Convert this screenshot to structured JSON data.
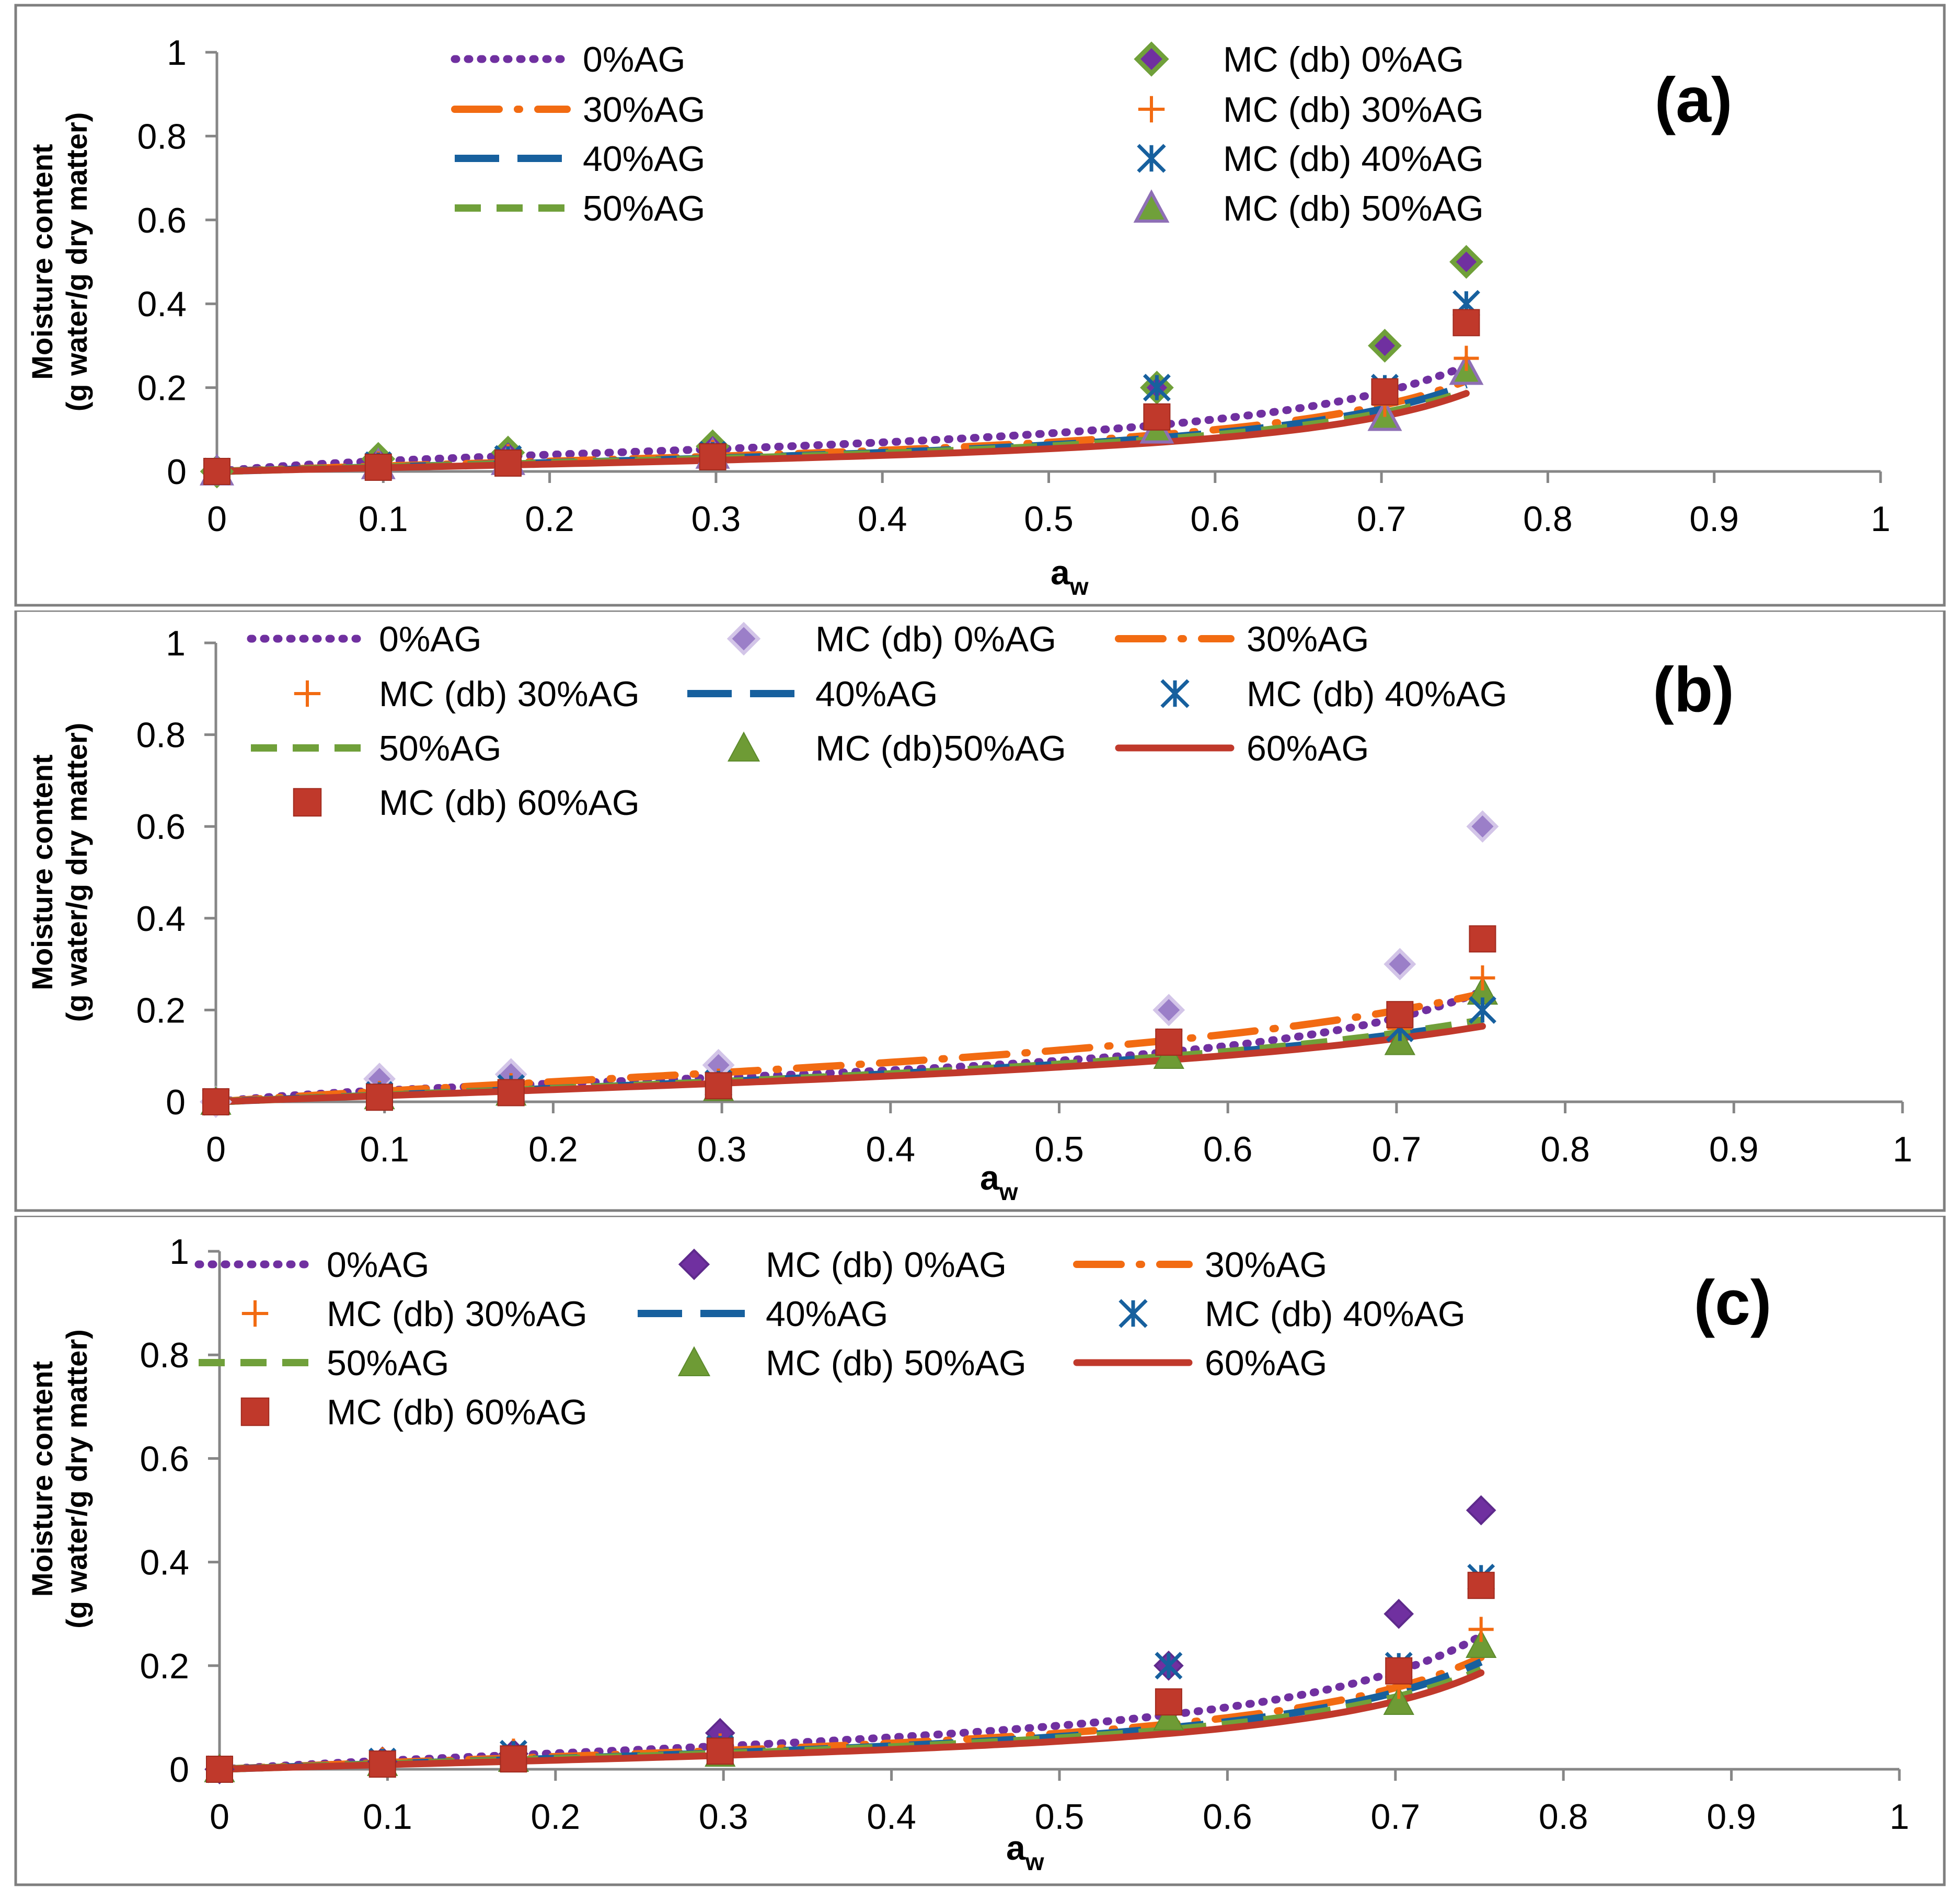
{
  "chart_data": [
    {
      "type": "scatter",
      "panel_label": "(a)",
      "title": "",
      "xlabel_main": "a",
      "xlabel_sub": "w",
      "ylabel_line1": "Moisture content",
      "ylabel_line2": "(g water/g dry matter)",
      "xlim": [
        0,
        1
      ],
      "ylim": [
        0,
        1
      ],
      "xticks": [
        "0",
        "0.1",
        "0.2",
        "0.3",
        "0.4",
        "0.5",
        "0.6",
        "0.7",
        "0.8",
        "0.9",
        "1"
      ],
      "yticks": [
        "0",
        "0.2",
        "0.4",
        "0.6",
        "0.8",
        "1"
      ],
      "grid": false,
      "legend_position": "top",
      "series": [
        {
          "name": "0%AG",
          "kind": "line",
          "style": "dotted",
          "color": "#7030A0",
          "model": {
            "W": 0.045,
            "C": 8,
            "K": 1.1
          }
        },
        {
          "name": "30%AG",
          "kind": "line",
          "style": "dashdot",
          "color": "#F26B12",
          "model": {
            "W": 0.038,
            "C": 3.5,
            "K": 1.11
          }
        },
        {
          "name": "40%AG",
          "kind": "line",
          "style": "dashed",
          "color": "#17609E",
          "model": {
            "W": 0.035,
            "C": 3.0,
            "K": 1.12
          }
        },
        {
          "name": "50%AG",
          "kind": "line",
          "style": "shortdash",
          "color": "#70A03A",
          "model": {
            "W": 0.034,
            "C": 3.0,
            "K": 1.11
          }
        },
        {
          "name": "",
          "kind": "line",
          "style": "solid",
          "color": "#C0392B",
          "model": {
            "W": 0.03,
            "C": 2.8,
            "K": 1.13
          }
        },
        {
          "name": "MC (db) 0%AG",
          "kind": "marker",
          "marker": "diamond-green",
          "color": "#70A03A",
          "x": [
            0,
            0.097,
            0.175,
            0.298,
            0.565,
            0.702,
            0.751
          ],
          "y": [
            0,
            0.03,
            0.045,
            0.06,
            0.2,
            0.3,
            0.5
          ]
        },
        {
          "name": "MC (db) 30%AG",
          "kind": "marker",
          "marker": "plus",
          "color": "#F26B12",
          "x": [
            0,
            0.097,
            0.175,
            0.298,
            0.565,
            0.702,
            0.751
          ],
          "y": [
            0,
            0.018,
            0.035,
            0.045,
            0.13,
            0.16,
            0.27
          ]
        },
        {
          "name": "MC (db) 40%AG",
          "kind": "marker",
          "marker": "asterisk",
          "color": "#17609E",
          "x": [
            0,
            0.097,
            0.175,
            0.298,
            0.565,
            0.702,
            0.751
          ],
          "y": [
            0,
            0.015,
            0.03,
            0.04,
            0.2,
            0.2,
            0.4
          ]
        },
        {
          "name": "MC (db) 50%AG",
          "kind": "marker",
          "marker": "triangle-purple",
          "color": "#8E6FB5",
          "x": [
            0,
            0.097,
            0.175,
            0.298,
            0.565,
            0.702,
            0.751
          ],
          "y": [
            0,
            0.015,
            0.025,
            0.04,
            0.1,
            0.13,
            0.24
          ]
        },
        {
          "name": "",
          "kind": "marker",
          "marker": "square",
          "color": "#C0392B",
          "x": [
            0,
            0.097,
            0.175,
            0.298,
            0.565,
            0.702,
            0.751
          ],
          "y": [
            0,
            0.01,
            0.02,
            0.035,
            0.13,
            0.19,
            0.355
          ]
        }
      ]
    },
    {
      "type": "scatter",
      "panel_label": "(b)",
      "title": "",
      "xlabel_main": "a",
      "xlabel_sub": "w",
      "ylabel_line1": "Moisture content",
      "ylabel_line2": "(g water/g dry matter)",
      "xlim": [
        0,
        1
      ],
      "ylim": [
        0,
        1
      ],
      "xticks": [
        "0",
        "0.1",
        "0.2",
        "0.3",
        "0.4",
        "0.5",
        "0.6",
        "0.7",
        "0.8",
        "0.9",
        "1"
      ],
      "yticks": [
        "0",
        "0.2",
        "0.4",
        "0.6",
        "0.8",
        "1"
      ],
      "grid": false,
      "legend_position": "top",
      "series": [
        {
          "name": "0%AG",
          "kind": "line",
          "style": "dotted",
          "color": "#7030A0",
          "model": {
            "W": 0.045,
            "C": 8,
            "K": 1.09
          }
        },
        {
          "name": "MC (db) 0%AG",
          "kind": "marker",
          "marker": "diamond-light",
          "color": "#9B7FC8",
          "x": [
            0,
            0.097,
            0.175,
            0.298,
            0.565,
            0.702,
            0.751
          ],
          "y": [
            0,
            0.05,
            0.06,
            0.08,
            0.2,
            0.3,
            0.6
          ]
        },
        {
          "name": "30%AG",
          "kind": "line",
          "style": "dashdot",
          "color": "#F26B12",
          "model": {
            "W": 0.08,
            "C": 3.5,
            "K": 0.93
          }
        },
        {
          "name": "MC (db) 30%AG",
          "kind": "marker",
          "marker": "plus",
          "color": "#F26B12",
          "x": [
            0,
            0.097,
            0.175,
            0.298,
            0.565,
            0.702,
            0.751
          ],
          "y": [
            0,
            0.018,
            0.035,
            0.045,
            0.13,
            0.16,
            0.27
          ]
        },
        {
          "name": "40%AG",
          "kind": "line",
          "style": "dashed",
          "color": "#17609E",
          "model": {
            "W": 0.065,
            "C": 2.6,
            "K": 0.91
          }
        },
        {
          "name": "MC (db) 40%AG",
          "kind": "marker",
          "marker": "asterisk",
          "color": "#17609E",
          "x": [
            0,
            0.097,
            0.175,
            0.298,
            0.565,
            0.702,
            0.751
          ],
          "y": [
            0,
            0.015,
            0.03,
            0.04,
            0.13,
            0.16,
            0.2
          ]
        },
        {
          "name": "50%AG",
          "kind": "line",
          "style": "shortdash",
          "color": "#70A03A",
          "model": {
            "W": 0.065,
            "C": 2.5,
            "K": 0.92
          }
        },
        {
          "name": "MC (db)50%AG",
          "kind": "marker",
          "marker": "triangle",
          "color": "#6E9B35",
          "x": [
            0,
            0.097,
            0.175,
            0.298,
            0.565,
            0.702,
            0.751
          ],
          "y": [
            0,
            0.012,
            0.02,
            0.03,
            0.1,
            0.13,
            0.24
          ]
        },
        {
          "name": "60%AG",
          "kind": "line",
          "style": "solid",
          "color": "#C0392B",
          "model": {
            "W": 0.06,
            "C": 2.5,
            "K": 0.92
          }
        },
        {
          "name": "MC (db) 60%AG",
          "kind": "marker",
          "marker": "square",
          "color": "#C0392B",
          "x": [
            0,
            0.097,
            0.175,
            0.298,
            0.565,
            0.702,
            0.751
          ],
          "y": [
            0,
            0.01,
            0.02,
            0.035,
            0.13,
            0.19,
            0.355
          ]
        }
      ]
    },
    {
      "type": "scatter",
      "panel_label": "(c)",
      "title": "",
      "xlabel_main": "a",
      "xlabel_sub": "w",
      "ylabel_line1": "Moisture content",
      "ylabel_line2": "(g water/g dry matter)",
      "xlim": [
        0,
        1
      ],
      "ylim": [
        0,
        1
      ],
      "xticks": [
        "0",
        "0.1",
        "0.2",
        "0.3",
        "0.4",
        "0.5",
        "0.6",
        "0.7",
        "0.8",
        "0.9",
        "1"
      ],
      "yticks": [
        "0",
        "0.2",
        "0.4",
        "0.6",
        "0.8",
        "1"
      ],
      "grid": false,
      "legend_position": "top",
      "series": [
        {
          "name": "0%AG",
          "kind": "line",
          "style": "dotted",
          "color": "#7030A0",
          "model": {
            "W": 0.045,
            "C": 4,
            "K": 1.11
          }
        },
        {
          "name": "MC (db) 0%AG",
          "kind": "marker",
          "marker": "diamond",
          "color": "#7030A0",
          "x": [
            0,
            0.097,
            0.175,
            0.298,
            0.565,
            0.702,
            0.751
          ],
          "y": [
            0,
            0.015,
            0.03,
            0.07,
            0.2,
            0.3,
            0.5
          ]
        },
        {
          "name": "30%AG",
          "kind": "line",
          "style": "dashdot",
          "color": "#F26B12",
          "model": {
            "W": 0.038,
            "C": 3.5,
            "K": 1.11
          }
        },
        {
          "name": "MC (db) 30%AG",
          "kind": "marker",
          "marker": "plus",
          "color": "#F26B12",
          "x": [
            0,
            0.097,
            0.175,
            0.298,
            0.565,
            0.702,
            0.751
          ],
          "y": [
            0,
            0.018,
            0.035,
            0.045,
            0.13,
            0.16,
            0.27
          ]
        },
        {
          "name": "40%AG",
          "kind": "line",
          "style": "dashed",
          "color": "#17609E",
          "model": {
            "W": 0.035,
            "C": 3.0,
            "K": 1.12
          }
        },
        {
          "name": "MC (db) 40%AG",
          "kind": "marker",
          "marker": "asterisk",
          "color": "#17609E",
          "x": [
            0,
            0.097,
            0.175,
            0.298,
            0.565,
            0.702,
            0.751
          ],
          "y": [
            0,
            0.015,
            0.03,
            0.04,
            0.2,
            0.2,
            0.37
          ]
        },
        {
          "name": "50%AG",
          "kind": "line",
          "style": "shortdash",
          "color": "#70A03A",
          "model": {
            "W": 0.034,
            "C": 3.0,
            "K": 1.11
          }
        },
        {
          "name": "MC (db) 50%AG",
          "kind": "marker",
          "marker": "triangle",
          "color": "#6E9B35",
          "x": [
            0,
            0.097,
            0.175,
            0.298,
            0.565,
            0.702,
            0.751
          ],
          "y": [
            0,
            0.012,
            0.02,
            0.03,
            0.1,
            0.13,
            0.24
          ]
        },
        {
          "name": "60%AG",
          "kind": "line",
          "style": "solid",
          "color": "#C0392B",
          "model": {
            "W": 0.03,
            "C": 2.8,
            "K": 1.13
          }
        },
        {
          "name": "MC (db) 60%AG",
          "kind": "marker",
          "marker": "square",
          "color": "#C0392B",
          "x": [
            0,
            0.097,
            0.175,
            0.298,
            0.565,
            0.702,
            0.751
          ],
          "y": [
            0,
            0.01,
            0.02,
            0.035,
            0.13,
            0.19,
            0.355
          ]
        }
      ]
    }
  ]
}
